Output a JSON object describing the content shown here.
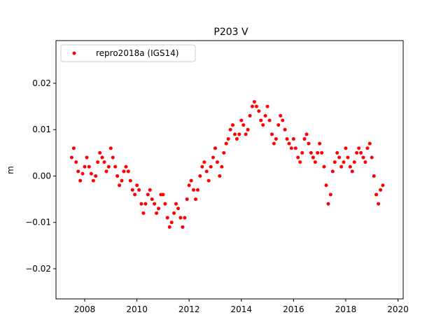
{
  "chart_data": {
    "type": "scatter",
    "title": "P203 V",
    "xlabel": "",
    "ylabel": "m",
    "xlim": [
      2006.9,
      2020.2
    ],
    "ylim": [
      -0.0265,
      0.0292
    ],
    "xticks": [
      2008,
      2010,
      2012,
      2014,
      2016,
      2018,
      2020
    ],
    "xtick_labels": [
      "2008",
      "2010",
      "2012",
      "2014",
      "2016",
      "2018",
      "2020"
    ],
    "yticks": [
      -0.02,
      -0.01,
      0.0,
      0.01,
      0.02
    ],
    "ytick_labels": [
      "−0.02",
      "−0.01",
      "0.00",
      "0.01",
      "0.02"
    ],
    "grid": false,
    "legend_position": "upper-left",
    "series": [
      {
        "name": "repro2018a (IGS14)",
        "color": "#ff0000",
        "marker": "dot",
        "x": [
          2007.5,
          2007.58,
          2007.67,
          2007.75,
          2007.83,
          2007.92,
          2008.0,
          2008.08,
          2008.17,
          2008.25,
          2008.33,
          2008.42,
          2008.5,
          2008.58,
          2008.67,
          2008.75,
          2008.83,
          2008.92,
          2009.0,
          2009.08,
          2009.17,
          2009.25,
          2009.33,
          2009.42,
          2009.5,
          2009.58,
          2009.67,
          2009.75,
          2009.83,
          2009.92,
          2010.0,
          2010.08,
          2010.17,
          2010.25,
          2010.33,
          2010.42,
          2010.5,
          2010.58,
          2010.67,
          2010.75,
          2010.83,
          2010.92,
          2011.0,
          2011.08,
          2011.17,
          2011.25,
          2011.33,
          2011.42,
          2011.5,
          2011.58,
          2011.67,
          2011.75,
          2011.83,
          2011.92,
          2012.0,
          2012.08,
          2012.17,
          2012.25,
          2012.33,
          2012.42,
          2012.5,
          2012.58,
          2012.67,
          2012.75,
          2012.83,
          2012.92,
          2013.0,
          2013.08,
          2013.17,
          2013.25,
          2013.33,
          2013.42,
          2013.5,
          2013.58,
          2013.67,
          2013.75,
          2013.83,
          2013.92,
          2014.0,
          2014.08,
          2014.17,
          2014.25,
          2014.33,
          2014.42,
          2014.5,
          2014.58,
          2014.67,
          2014.75,
          2014.83,
          2014.92,
          2015.0,
          2015.08,
          2015.17,
          2015.25,
          2015.33,
          2015.42,
          2015.5,
          2015.58,
          2015.67,
          2015.75,
          2015.83,
          2015.92,
          2016.0,
          2016.08,
          2016.17,
          2016.25,
          2016.33,
          2016.42,
          2016.5,
          2016.58,
          2016.67,
          2016.75,
          2016.83,
          2016.92,
          2017.0,
          2017.08,
          2017.17,
          2017.25,
          2017.33,
          2017.42,
          2017.5,
          2017.58,
          2017.67,
          2017.75,
          2017.83,
          2017.92,
          2018.0,
          2018.08,
          2018.17,
          2018.25,
          2018.33,
          2018.42,
          2018.5,
          2018.58,
          2018.67,
          2018.75,
          2018.83,
          2018.92,
          2019.0,
          2019.08,
          2019.17,
          2019.25,
          2019.33,
          2019.42
        ],
        "y": [
          0.004,
          0.006,
          0.003,
          0.001,
          -0.001,
          0.0005,
          0.002,
          0.004,
          0.002,
          0.0005,
          -0.001,
          0.0,
          0.003,
          0.005,
          0.004,
          0.003,
          0.001,
          0.002,
          0.006,
          0.004,
          0.002,
          0.0,
          -0.002,
          -0.001,
          0.001,
          0.002,
          0.001,
          -0.001,
          -0.003,
          -0.004,
          -0.002,
          -0.003,
          -0.006,
          -0.008,
          -0.006,
          -0.004,
          -0.003,
          -0.005,
          -0.006,
          -0.008,
          -0.007,
          -0.004,
          -0.004,
          -0.006,
          -0.009,
          -0.011,
          -0.01,
          -0.008,
          -0.006,
          -0.007,
          -0.009,
          -0.011,
          -0.009,
          -0.005,
          -0.002,
          -0.001,
          -0.003,
          -0.005,
          -0.003,
          0.0,
          0.002,
          0.003,
          0.001,
          -0.001,
          0.002,
          0.004,
          0.006,
          0.003,
          0.0,
          0.002,
          0.005,
          0.007,
          0.008,
          0.01,
          0.011,
          0.009,
          0.008,
          0.009,
          0.012,
          0.011,
          0.009,
          0.01,
          0.013,
          0.015,
          0.016,
          0.015,
          0.014,
          0.012,
          0.011,
          0.013,
          0.015,
          0.012,
          0.009,
          0.007,
          0.008,
          0.011,
          0.013,
          0.012,
          0.01,
          0.008,
          0.007,
          0.006,
          0.008,
          0.006,
          0.004,
          0.003,
          0.005,
          0.008,
          0.009,
          0.007,
          0.005,
          0.004,
          0.003,
          0.005,
          0.007,
          0.005,
          0.002,
          -0.002,
          -0.006,
          -0.004,
          0.001,
          0.003,
          0.005,
          0.004,
          0.002,
          0.003,
          0.006,
          0.004,
          0.002,
          0.001,
          0.003,
          0.005,
          0.006,
          0.005,
          0.004,
          0.003,
          0.006,
          0.007,
          0.004,
          0.0,
          -0.004,
          -0.006,
          -0.003,
          -0.002
        ]
      }
    ]
  }
}
